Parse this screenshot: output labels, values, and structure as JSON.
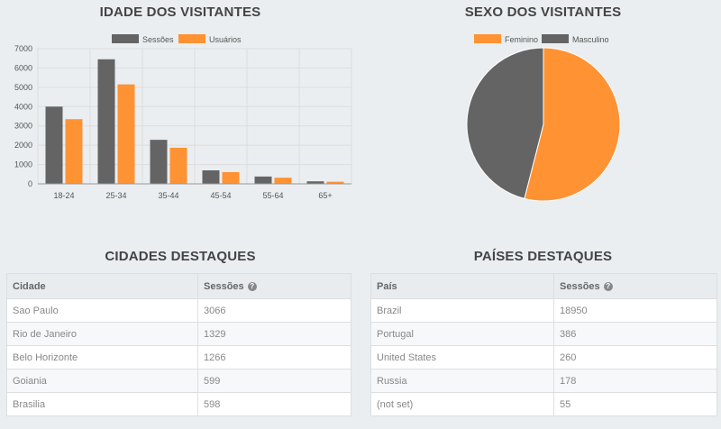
{
  "age_section": {
    "title": "IDADE DOS VISITANTES"
  },
  "gender_section": {
    "title": "SEXO DOS VISITANTES"
  },
  "colors": {
    "sessions": "#646464",
    "users": "#ff9233",
    "feminino": "#ff9233",
    "masculino": "#646464"
  },
  "chart_data": [
    {
      "type": "bar",
      "categories": [
        "18-24",
        "25-34",
        "35-44",
        "45-54",
        "55-64",
        "65+"
      ],
      "series": [
        {
          "name": "Sessões",
          "values": [
            4000,
            6450,
            2280,
            700,
            380,
            130
          ]
        },
        {
          "name": "Usuários",
          "values": [
            3350,
            5150,
            1870,
            610,
            320,
            110
          ]
        }
      ],
      "yticks": [
        "0",
        "1000",
        "2000",
        "3000",
        "4000",
        "5000",
        "6000",
        "7000"
      ],
      "ylim": [
        0,
        7000
      ],
      "grid": true,
      "legend": "top"
    },
    {
      "type": "pie",
      "labels": [
        "Feminino",
        "Masculino"
      ],
      "values": [
        54,
        46
      ],
      "legend": "top"
    }
  ],
  "cities": {
    "title": "CIDADES DESTAQUES",
    "header": {
      "col1": "Cidade",
      "col2": "Sessões"
    },
    "rows": [
      {
        "name": "Sao Paulo",
        "value": "3066"
      },
      {
        "name": "Rio de Janeiro",
        "value": "1329"
      },
      {
        "name": "Belo Horizonte",
        "value": "1266"
      },
      {
        "name": "Goiania",
        "value": "599"
      },
      {
        "name": "Brasilia",
        "value": "598"
      }
    ]
  },
  "countries": {
    "title": "PAÍSES DESTAQUES",
    "header": {
      "col1": "País",
      "col2": "Sessões"
    },
    "rows": [
      {
        "name": "Brazil",
        "value": "18950"
      },
      {
        "name": "Portugal",
        "value": "386"
      },
      {
        "name": "United States",
        "value": "260"
      },
      {
        "name": "Russia",
        "value": "178"
      },
      {
        "name": "(not set)",
        "value": "55"
      }
    ]
  },
  "icons": {
    "help": "?"
  }
}
